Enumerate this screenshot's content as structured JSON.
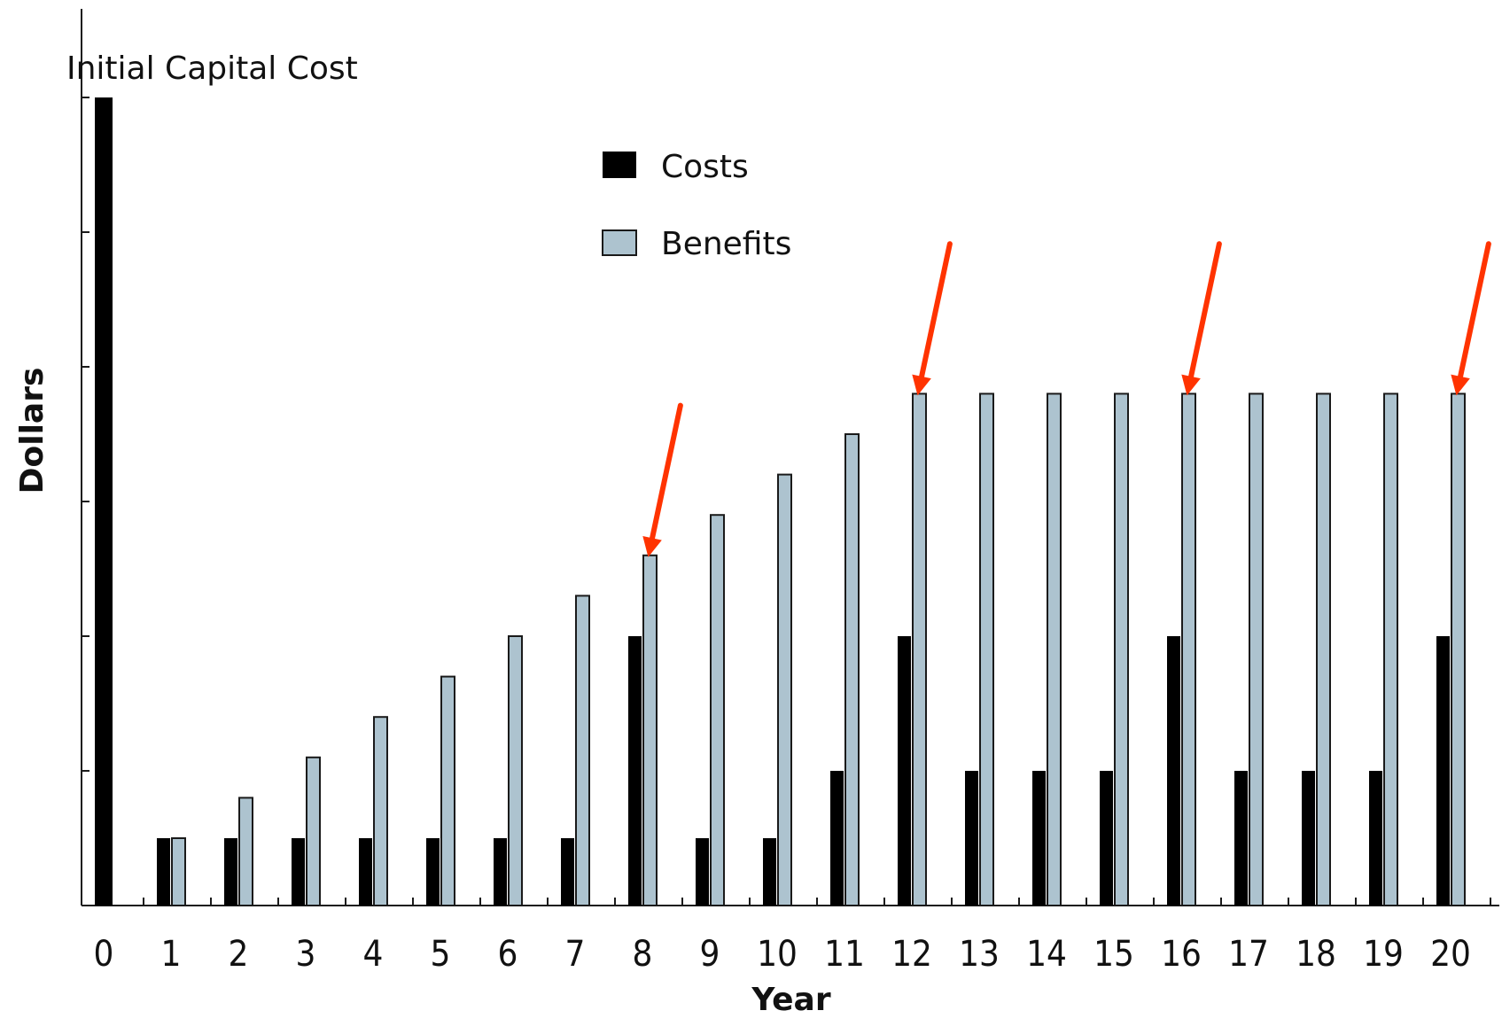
{
  "chart_data": {
    "type": "bar",
    "title": "",
    "xlabel": "Year",
    "ylabel": "Dollars",
    "annotation": "Initial Capital Cost",
    "categories": [
      "0",
      "1",
      "2",
      "3",
      "4",
      "5",
      "6",
      "7",
      "8",
      "9",
      "10",
      "11",
      "12",
      "13",
      "14",
      "15",
      "16",
      "17",
      "18",
      "19",
      "20"
    ],
    "ylim": [
      0,
      6
    ],
    "y_ticks_labeled": false,
    "grid": false,
    "legend": {
      "placement": "top-center"
    },
    "series": [
      {
        "name": "Costs",
        "color": "#000000",
        "values": [
          6,
          0.5,
          0.5,
          0.5,
          0.5,
          0.5,
          0.5,
          0.5,
          2,
          0.5,
          0.5,
          1,
          2,
          1,
          1,
          1,
          2,
          1,
          1,
          1,
          2
        ]
      },
      {
        "name": "Benefits",
        "color": "#adc3cf",
        "values": [
          0,
          0.5,
          0.8,
          1.1,
          1.4,
          1.7,
          2.0,
          2.3,
          2.6,
          2.9,
          3.2,
          3.5,
          3.8,
          3.8,
          3.8,
          3.8,
          3.8,
          3.8,
          3.8,
          3.8,
          3.8
        ]
      }
    ],
    "highlighted_years": [
      "8",
      "12",
      "16",
      "20"
    ],
    "highlight_color": "#ff3300"
  }
}
